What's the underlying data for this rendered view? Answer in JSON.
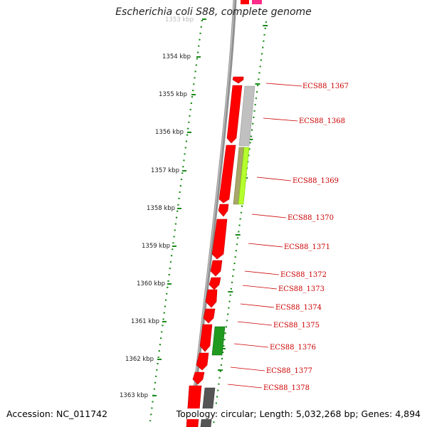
{
  "title": "Escherichia coli S88, complete genome",
  "footer": {
    "accession": "Accession: NC_011742",
    "summary": "Topology: circular; Length: 5,032,268 bp; Genes: 4,894"
  },
  "scale": {
    "unit": "kbp",
    "ticks": [
      "1353 kbp",
      "1354 kbp",
      "1355 kbp",
      "1356 kbp",
      "1357 kbp",
      "1358 kbp",
      "1359 kbp",
      "1360 kbp",
      "1361 kbp",
      "1362 kbp",
      "1363 kbp"
    ]
  },
  "genes": [
    "ECS88_1367",
    "ECS88_1368",
    "ECS88_1369",
    "ECS88_1370",
    "ECS88_1371",
    "ECS88_1372",
    "ECS88_1373",
    "ECS88_1374",
    "ECS88_1375",
    "ECS88_1376",
    "ECS88_1377",
    "ECS88_1378"
  ],
  "colors": {
    "gene_label": "#cc0000",
    "cds": "#ff0000",
    "backbone": "#808080",
    "dotted_ring": "#1a8a1a",
    "similarity_gray": "#c0c0c0",
    "similarity_lime": "#b5ff2e",
    "similarity_olive": "#a8a66a",
    "similarity_green": "#1f9a1f",
    "similarity_dark": "#555555",
    "top_marker": "#ff2b8a"
  }
}
